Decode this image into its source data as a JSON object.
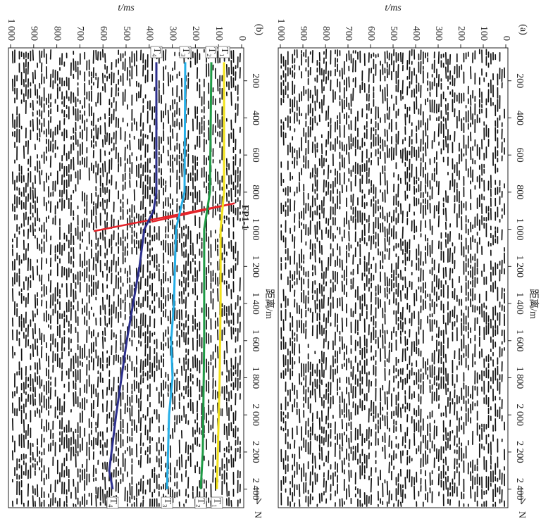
{
  "chart_data": [
    {
      "type": "seismic",
      "panel_label": "(a)",
      "xlabel": "距离/m",
      "ylabel": "t/ms",
      "north": "N",
      "xlim": [
        0,
        2500
      ],
      "ylim": [
        0,
        1000
      ],
      "xticks": [
        200,
        400,
        600,
        800,
        {
          "value": 1000,
          "label": "1 000"
        },
        {
          "value": 1200,
          "label": "1 200"
        },
        {
          "value": 1400,
          "label": "1 400"
        },
        {
          "value": 1600,
          "label": "1 600"
        },
        {
          "value": 1800,
          "label": "1 800"
        },
        {
          "value": 2000,
          "label": "2 000"
        },
        {
          "value": 2200,
          "label": "2 200"
        },
        {
          "value": 2400,
          "label": "2 400"
        }
      ],
      "yticks": [
        0,
        100,
        200,
        300,
        400,
        500,
        600,
        700,
        800,
        900,
        {
          "value": 1000,
          "label": "1 000"
        }
      ]
    },
    {
      "type": "seismic",
      "panel_label": "(b)",
      "xlabel": "距离/m",
      "ylabel": "t/ms",
      "north": "N",
      "xlim": [
        0,
        2500
      ],
      "ylim": [
        0,
        1000
      ],
      "xticks": [
        200,
        400,
        600,
        800,
        {
          "value": 1000,
          "label": "1 000"
        },
        {
          "value": 1200,
          "label": "1 200"
        },
        {
          "value": 1400,
          "label": "1 400"
        },
        {
          "value": 1600,
          "label": "1 600"
        },
        {
          "value": 1800,
          "label": "1 800"
        },
        {
          "value": 2000,
          "label": "2 000"
        },
        {
          "value": 2200,
          "label": "2 200"
        },
        {
          "value": 2400,
          "label": "2 400"
        }
      ],
      "yticks": [
        0,
        100,
        200,
        300,
        400,
        500,
        600,
        700,
        800,
        900,
        {
          "value": 1000,
          "label": "1 000"
        }
      ],
      "series": [
        {
          "name": "T₁",
          "color": "#f2e21a",
          "x": [
            100,
            800,
            1000,
            1400,
            1800,
            2400
          ],
          "values": [
            76,
            76,
            91,
            91,
            95,
            107
          ]
        },
        {
          "name": "T₂",
          "color": "#1e9a45",
          "x": [
            100,
            800,
            1000,
            1600,
            2200,
            2400
          ],
          "values": [
            131,
            137,
            162,
            162,
            168,
            177
          ]
        },
        {
          "name": "T₃",
          "color": "#25aee6",
          "x": [
            100,
            800,
            1000,
            1400,
            1600,
            1800,
            2000,
            2400
          ],
          "values": [
            244,
            247,
            284,
            293,
            305,
            299,
            314,
            323
          ]
        },
        {
          "name": "T₄",
          "color": "#2c2f8c",
          "x": [
            100,
            800,
            900,
            1000,
            1200,
            1600,
            2000,
            2300,
            2400
          ],
          "values": [
            369,
            369,
            381,
            421,
            442,
            497,
            543,
            573,
            558
          ]
        }
      ],
      "faults": [
        {
          "name": "FP1-1",
          "color": "#e4232a",
          "x": [
            860,
            1010
          ],
          "values": [
            30,
            640
          ]
        },
        {
          "color": "#e4232a",
          "x": [
            860,
            960
          ],
          "values": [
            30,
            390
          ]
        }
      ]
    }
  ]
}
